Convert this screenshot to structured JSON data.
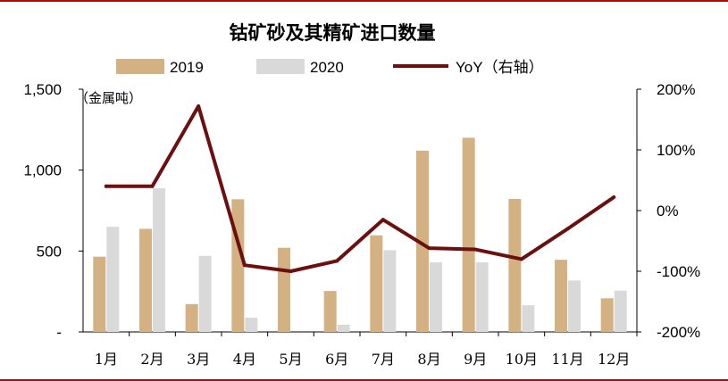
{
  "chart_data": {
    "type": "bar",
    "title": "钴矿砂及其精矿进口数量",
    "y_unit_label": "（金属吨）",
    "categories": [
      "1月",
      "2月",
      "3月",
      "4月",
      "5月",
      "6月",
      "7月",
      "8月",
      "9月",
      "10月",
      "11月",
      "12月"
    ],
    "series": [
      {
        "name": "2019",
        "type": "bar",
        "axis": "left",
        "color": "#d4b183",
        "values": [
          465,
          637,
          172,
          820,
          520,
          253,
          597,
          1120,
          1200,
          822,
          446,
          208
        ]
      },
      {
        "name": "2020",
        "type": "bar",
        "axis": "left",
        "color": "#d9d9d9",
        "values": [
          650,
          888,
          470,
          88,
          0,
          45,
          505,
          430,
          430,
          165,
          318,
          255
        ]
      },
      {
        "name": "YoY（右轴）",
        "type": "line",
        "axis": "right",
        "color": "#6b0f0f",
        "values": [
          40,
          40,
          172,
          -90,
          -100,
          -83,
          -15,
          -62,
          -64,
          -80,
          -30,
          22
        ]
      }
    ],
    "y_left": {
      "min": 0,
      "max": 1500,
      "ticks": [
        0,
        500,
        1000,
        1500
      ],
      "tick_labels": [
        "-",
        "500",
        "1,000",
        "1,500"
      ]
    },
    "y_right": {
      "min": -200,
      "max": 200,
      "ticks": [
        -200,
        -100,
        0,
        100,
        200
      ],
      "tick_labels": [
        "-200%",
        "-100%",
        "0%",
        "100%",
        "200%"
      ]
    },
    "grid": false,
    "legend_position": "top"
  }
}
